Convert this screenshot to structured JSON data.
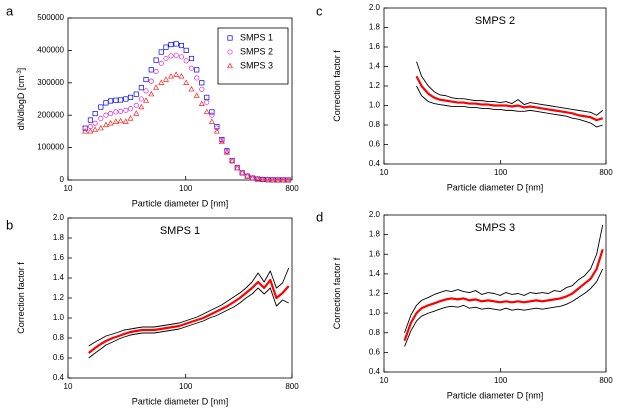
{
  "chart_data": [
    {
      "type": "scatter",
      "label": "a",
      "xlabel": "Particle diameter D [nm]",
      "ylabel": "dN/dlogD [cm",
      "ylabel_exponent": "-3",
      "ylabel_close": "]",
      "xscale": "log",
      "xlim": [
        10,
        800
      ],
      "xticks": [
        10,
        100,
        800
      ],
      "ylim": [
        0,
        500000
      ],
      "yticks": [
        0,
        100000,
        200000,
        300000,
        400000,
        500000
      ],
      "legend": "upper right",
      "x": [
        14,
        15.5,
        17,
        19,
        21,
        23,
        25.5,
        28,
        31,
        34,
        38,
        42,
        46,
        51,
        56,
        62,
        68,
        75,
        83,
        92,
        101,
        112,
        124,
        137,
        151,
        167,
        184,
        203,
        224,
        248,
        274,
        302,
        334,
        369,
        408,
        451,
        498,
        550,
        608,
        672,
        742
      ],
      "series": [
        {
          "name": "SMPS 1",
          "color": "#0000ff",
          "marker": "square",
          "values": [
            160000,
            185000,
            205000,
            225000,
            238000,
            244000,
            246000,
            247000,
            250000,
            255000,
            265000,
            285000,
            310000,
            340000,
            370000,
            395000,
            410000,
            418000,
            420000,
            415000,
            400000,
            375000,
            340000,
            300000,
            255000,
            210000,
            165000,
            125000,
            90000,
            60000,
            38000,
            22000,
            12000,
            6000,
            3000,
            1500,
            800,
            400,
            200,
            100,
            50
          ]
        },
        {
          "name": "SMPS 2",
          "color": "#e020e0",
          "marker": "circle",
          "values": [
            160000,
            165000,
            175000,
            190000,
            200000,
            205000,
            210000,
            212000,
            215000,
            220000,
            230000,
            250000,
            275000,
            305000,
            335000,
            360000,
            375000,
            383000,
            385000,
            380000,
            368000,
            345000,
            315000,
            280000,
            240000,
            200000,
            160000,
            122000,
            88000,
            60000,
            38000,
            22000,
            12000,
            6000,
            3000,
            1500,
            800,
            400,
            200,
            100,
            50
          ]
        },
        {
          "name": "SMPS 3",
          "color": "#ff2020",
          "marker": "triangle",
          "values": [
            150000,
            150000,
            155000,
            160000,
            170000,
            175000,
            180000,
            182000,
            180000,
            190000,
            205000,
            225000,
            245000,
            265000,
            285000,
            300000,
            310000,
            320000,
            325000,
            320000,
            300000,
            280000,
            260000,
            235000,
            210000,
            180000,
            150000,
            118000,
            85000,
            58000,
            37000,
            22000,
            12000,
            6000,
            3000,
            1500,
            800,
            400,
            200,
            100,
            50
          ]
        }
      ]
    },
    {
      "type": "line",
      "label": "b",
      "title": "SMPS 1",
      "xlabel": "Particle diameter D [nm]",
      "ylabel": "Correction factor f",
      "xscale": "log",
      "xlim": [
        10,
        800
      ],
      "xticks": [
        10,
        100,
        800
      ],
      "ylim": [
        0.4,
        2
      ],
      "yticks": [
        0.4,
        0.6,
        0.8,
        {
          "value": 1,
          "label": "1.0"
        },
        1.2,
        1.4,
        1.6,
        1.8,
        {
          "value": 2,
          "label": "2.0"
        }
      ],
      "x": [
        15,
        17,
        19,
        21,
        24,
        27,
        30,
        34,
        38,
        43,
        48,
        54,
        61,
        69,
        78,
        88,
        99,
        111,
        125,
        141,
        159,
        179,
        202,
        227,
        256,
        288,
        325,
        366,
        412,
        464,
        523,
        590,
        665,
        750
      ],
      "series": [
        {
          "color": "#000000",
          "values": [
            0.72,
            0.76,
            0.79,
            0.82,
            0.84,
            0.86,
            0.88,
            0.89,
            0.9,
            0.91,
            0.91,
            0.91,
            0.92,
            0.93,
            0.94,
            0.95,
            0.97,
            0.99,
            1.01,
            1.04,
            1.07,
            1.1,
            1.13,
            1.17,
            1.21,
            1.25,
            1.3,
            1.36,
            1.45,
            1.36,
            1.47,
            1.3,
            1.35,
            1.5
          ]
        },
        {
          "color": "#ff0000",
          "values": [
            0.65,
            0.7,
            0.74,
            0.77,
            0.8,
            0.82,
            0.84,
            0.86,
            0.87,
            0.88,
            0.88,
            0.88,
            0.89,
            0.9,
            0.91,
            0.92,
            0.94,
            0.96,
            0.98,
            1.0,
            1.03,
            1.06,
            1.09,
            1.12,
            1.16,
            1.2,
            1.25,
            1.3,
            1.36,
            1.3,
            1.38,
            1.2,
            1.25,
            1.32
          ]
        },
        {
          "color": "#000000",
          "values": [
            0.6,
            0.65,
            0.69,
            0.73,
            0.76,
            0.79,
            0.81,
            0.83,
            0.84,
            0.85,
            0.85,
            0.85,
            0.86,
            0.87,
            0.88,
            0.89,
            0.91,
            0.93,
            0.95,
            0.97,
            1.0,
            1.02,
            1.05,
            1.08,
            1.11,
            1.15,
            1.2,
            1.24,
            1.3,
            1.24,
            1.3,
            1.12,
            1.18,
            1.15
          ]
        }
      ]
    },
    {
      "type": "line",
      "label": "c",
      "title": "SMPS 2",
      "xlabel": "Particle diameter D [nm]",
      "ylabel": "Correction factor f",
      "xscale": "log",
      "xlim": [
        10,
        800
      ],
      "xticks": [
        10,
        100,
        800
      ],
      "ylim": [
        0.4,
        2
      ],
      "yticks": [
        0.4,
        0.6,
        0.8,
        {
          "value": 1,
          "label": "1.0"
        },
        1.2,
        1.4,
        1.6,
        1.8,
        {
          "value": 2,
          "label": "2.0"
        }
      ],
      "x": [
        15,
        17,
        19,
        21,
        24,
        27,
        30,
        34,
        38,
        43,
        48,
        54,
        61,
        69,
        78,
        88,
        99,
        111,
        125,
        141,
        159,
        179,
        202,
        227,
        256,
        288,
        325,
        366,
        412,
        464,
        523,
        590,
        665,
        750
      ],
      "series": [
        {
          "color": "#000000",
          "values": [
            null,
            null,
            1.45,
            1.3,
            1.2,
            1.14,
            1.11,
            1.1,
            1.08,
            1.07,
            1.07,
            1.06,
            1.05,
            1.05,
            1.04,
            1.04,
            1.03,
            1.04,
            1.02,
            1.06,
            1.01,
            1.03,
            1.02,
            1.01,
            1.0,
            0.99,
            0.98,
            0.97,
            0.96,
            0.95,
            0.94,
            0.93,
            0.9,
            0.95
          ]
        },
        {
          "color": "#ff0000",
          "values": [
            null,
            null,
            1.3,
            1.2,
            1.12,
            1.08,
            1.06,
            1.05,
            1.04,
            1.03,
            1.03,
            1.02,
            1.02,
            1.01,
            1.01,
            1.0,
            1.0,
            1.0,
            0.99,
            1.0,
            0.98,
            0.99,
            0.98,
            0.97,
            0.96,
            0.95,
            0.94,
            0.93,
            0.92,
            0.9,
            0.89,
            0.88,
            0.85,
            0.87
          ]
        },
        {
          "color": "#000000",
          "values": [
            null,
            null,
            1.2,
            1.1,
            1.04,
            1.02,
            1.01,
            1.0,
            0.99,
            0.99,
            0.99,
            0.98,
            0.98,
            0.97,
            0.97,
            0.96,
            0.96,
            0.95,
            0.95,
            0.94,
            0.94,
            0.95,
            0.94,
            0.93,
            0.92,
            0.91,
            0.9,
            0.89,
            0.87,
            0.86,
            0.84,
            0.82,
            0.78,
            0.8
          ]
        }
      ]
    },
    {
      "type": "line",
      "label": "d",
      "title": "SMPS 3",
      "xlabel": "Particle diameter D [nm]",
      "ylabel": "Correction factor f",
      "xscale": "log",
      "xlim": [
        10,
        800
      ],
      "xticks": [
        10,
        100,
        800
      ],
      "ylim": [
        0.4,
        2
      ],
      "yticks": [
        0.4,
        0.6,
        0.8,
        {
          "value": 1,
          "label": "1.0"
        },
        1.2,
        1.4,
        1.6,
        1.8,
        {
          "value": 2,
          "label": "2.0"
        }
      ],
      "x": [
        15,
        17,
        19,
        21,
        24,
        27,
        30,
        34,
        38,
        43,
        48,
        54,
        61,
        69,
        78,
        88,
        99,
        111,
        125,
        141,
        159,
        179,
        202,
        227,
        256,
        288,
        325,
        366,
        412,
        464,
        523,
        590,
        665,
        750
      ],
      "series": [
        {
          "color": "#000000",
          "values": [
            0.8,
            0.98,
            1.08,
            1.13,
            1.16,
            1.19,
            1.21,
            1.23,
            1.22,
            1.24,
            1.22,
            1.21,
            1.23,
            1.19,
            1.21,
            1.2,
            1.18,
            1.21,
            1.19,
            1.2,
            1.18,
            1.21,
            1.2,
            1.21,
            1.2,
            1.23,
            1.22,
            1.26,
            1.28,
            1.34,
            1.38,
            1.45,
            1.6,
            1.9
          ]
        },
        {
          "color": "#ff0000",
          "values": [
            0.72,
            0.9,
            1.0,
            1.05,
            1.08,
            1.1,
            1.12,
            1.14,
            1.15,
            1.14,
            1.15,
            1.13,
            1.14,
            1.12,
            1.13,
            1.12,
            1.11,
            1.12,
            1.11,
            1.12,
            1.11,
            1.12,
            1.13,
            1.12,
            1.13,
            1.14,
            1.15,
            1.17,
            1.2,
            1.25,
            1.3,
            1.35,
            1.45,
            1.65
          ]
        },
        {
          "color": "#000000",
          "values": [
            0.66,
            0.82,
            0.92,
            0.97,
            1.0,
            1.02,
            1.04,
            1.06,
            1.07,
            1.06,
            1.08,
            1.05,
            1.06,
            1.04,
            1.05,
            1.04,
            1.03,
            1.05,
            1.03,
            1.04,
            1.03,
            1.04,
            1.05,
            1.04,
            1.05,
            1.06,
            1.07,
            1.09,
            1.12,
            1.16,
            1.2,
            1.25,
            1.32,
            1.45
          ]
        }
      ]
    }
  ]
}
